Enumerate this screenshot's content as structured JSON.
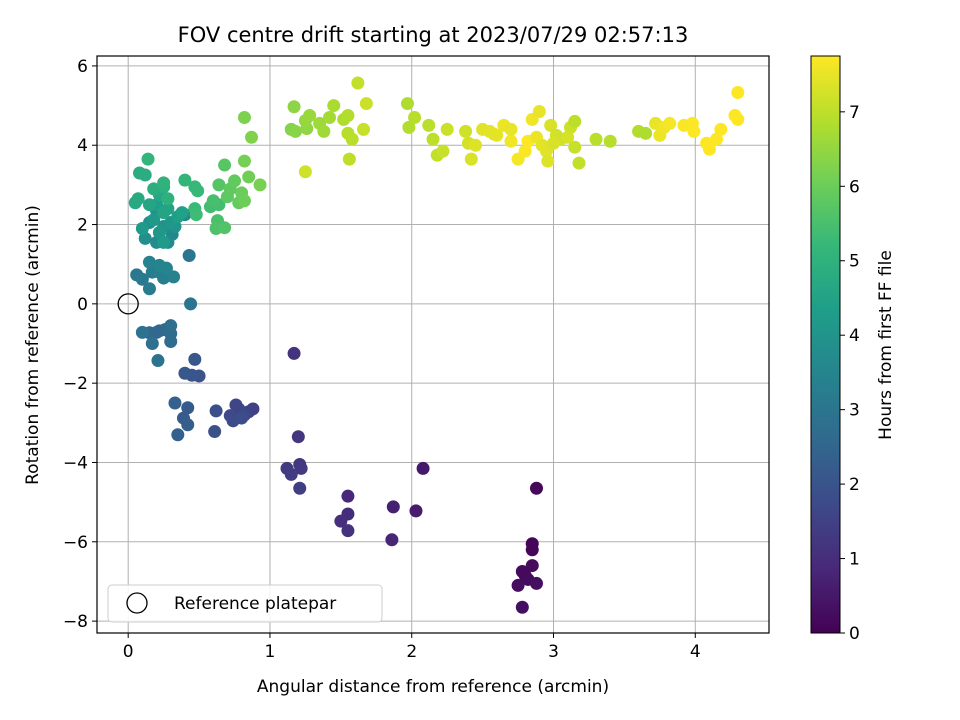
{
  "chart_data": {
    "type": "scatter",
    "title": "FOV centre drift starting at 2023/07/29 02:57:13",
    "xlabel": "Angular distance from reference (arcmin)",
    "ylabel": "Rotation from reference (arcmin)",
    "xlim": [
      -0.22,
      4.52
    ],
    "ylim": [
      -8.3,
      6.25
    ],
    "xticks": [
      0,
      1,
      2,
      3,
      4
    ],
    "yticks": [
      -8,
      -6,
      -4,
      -2,
      0,
      2,
      4,
      6
    ],
    "grid": true,
    "legend": {
      "placement": "lower-left",
      "entries": [
        "Reference platepar"
      ]
    },
    "reference_point": {
      "x": 0.0,
      "y": 0.0
    },
    "colorbar": {
      "label": "Hours from first FF file",
      "range": [
        0,
        7.75
      ],
      "ticks": [
        0,
        1,
        2,
        3,
        4,
        5,
        6,
        7
      ],
      "colormap": "viridis"
    },
    "colormap_stops": [
      "#440154",
      "#482878",
      "#3e4989",
      "#31688e",
      "#26828e",
      "#1f9e89",
      "#35b779",
      "#6ece58",
      "#b5de2b",
      "#fde725"
    ],
    "reference_marker_color": "#000000",
    "points": [
      [
        2.85,
        -6.05,
        0.1
      ],
      [
        2.85,
        -6.2,
        0.12
      ],
      [
        2.88,
        -4.65,
        0.15
      ],
      [
        2.8,
        -6.85,
        0.18
      ],
      [
        2.78,
        -6.75,
        0.2
      ],
      [
        2.85,
        -6.6,
        0.22
      ],
      [
        2.82,
        -6.95,
        0.25
      ],
      [
        2.75,
        -7.1,
        0.28
      ],
      [
        2.88,
        -7.05,
        0.3
      ],
      [
        2.78,
        -7.65,
        0.32
      ],
      [
        2.08,
        -4.15,
        0.5
      ],
      [
        2.03,
        -5.22,
        0.6
      ],
      [
        1.87,
        -5.12,
        0.7
      ],
      [
        1.86,
        -5.95,
        0.8
      ],
      [
        1.55,
        -4.85,
        0.9
      ],
      [
        1.55,
        -5.3,
        1.0
      ],
      [
        1.5,
        -5.48,
        1.05
      ],
      [
        1.55,
        -5.72,
        1.1
      ],
      [
        1.17,
        -1.25,
        1.15
      ],
      [
        1.2,
        -3.35,
        1.2
      ],
      [
        1.21,
        -4.05,
        1.25
      ],
      [
        1.22,
        -4.15,
        1.3
      ],
      [
        1.12,
        -4.15,
        1.35
      ],
      [
        1.15,
        -4.3,
        1.4
      ],
      [
        1.21,
        -4.65,
        1.45
      ],
      [
        0.88,
        -2.65,
        1.5
      ],
      [
        0.85,
        -2.72,
        1.55
      ],
      [
        0.78,
        -2.65,
        1.6
      ],
      [
        0.76,
        -2.55,
        1.65
      ],
      [
        0.82,
        -2.8,
        1.7
      ],
      [
        0.72,
        -2.82,
        1.75
      ],
      [
        0.74,
        -2.95,
        1.8
      ],
      [
        0.8,
        -2.88,
        1.85
      ],
      [
        0.62,
        -2.7,
        1.9
      ],
      [
        0.61,
        -3.22,
        1.95
      ],
      [
        0.5,
        -1.82,
        2.0
      ],
      [
        0.45,
        -1.8,
        2.05
      ],
      [
        0.4,
        -1.75,
        2.1
      ],
      [
        0.47,
        -1.4,
        2.15
      ],
      [
        0.42,
        -2.62,
        2.2
      ],
      [
        0.39,
        -2.88,
        2.25
      ],
      [
        0.42,
        -3.05,
        2.3
      ],
      [
        0.35,
        -3.3,
        2.35
      ],
      [
        0.33,
        -2.5,
        2.4
      ],
      [
        0.22,
        -0.68,
        2.5
      ],
      [
        0.2,
        -0.72,
        2.55
      ],
      [
        0.15,
        -0.73,
        2.6
      ],
      [
        0.26,
        -0.65,
        2.65
      ],
      [
        0.3,
        -0.75,
        2.7
      ],
      [
        0.3,
        -0.95,
        2.75
      ],
      [
        0.3,
        -0.55,
        2.8
      ],
      [
        0.17,
        -1.0,
        2.85
      ],
      [
        0.1,
        -0.72,
        2.9
      ],
      [
        0.21,
        -1.43,
        2.95
      ],
      [
        0.44,
        0.0,
        3.0
      ],
      [
        0.43,
        1.22,
        3.05
      ],
      [
        0.06,
        0.73,
        3.1
      ],
      [
        0.1,
        0.62,
        3.15
      ],
      [
        0.15,
        0.38,
        3.2
      ],
      [
        0.17,
        0.8,
        3.25
      ],
      [
        0.22,
        0.8,
        3.3
      ],
      [
        0.25,
        0.65,
        3.35
      ],
      [
        0.32,
        0.68,
        3.4
      ],
      [
        0.15,
        1.05,
        3.45
      ],
      [
        0.27,
        0.9,
        3.5
      ],
      [
        0.22,
        0.97,
        3.55
      ],
      [
        0.4,
        2.25,
        3.6
      ],
      [
        0.31,
        1.75,
        3.65
      ],
      [
        0.28,
        1.55,
        3.7
      ],
      [
        0.2,
        1.55,
        3.75
      ],
      [
        0.12,
        1.65,
        3.8
      ],
      [
        0.15,
        2.05,
        3.85
      ],
      [
        0.2,
        2.35,
        3.9
      ],
      [
        0.25,
        1.95,
        3.95
      ],
      [
        0.33,
        1.95,
        4.0
      ],
      [
        0.3,
        2.05,
        4.05
      ],
      [
        0.22,
        1.8,
        4.1
      ],
      [
        0.18,
        2.12,
        4.15
      ],
      [
        0.1,
        1.9,
        4.2
      ],
      [
        0.25,
        1.55,
        4.25
      ],
      [
        0.2,
        2.5,
        4.3
      ],
      [
        0.35,
        2.2,
        4.35
      ],
      [
        0.38,
        2.3,
        4.4
      ],
      [
        0.28,
        2.4,
        4.45
      ],
      [
        0.25,
        2.3,
        4.5
      ],
      [
        0.15,
        2.5,
        4.55
      ],
      [
        0.22,
        2.75,
        4.6
      ],
      [
        0.05,
        2.55,
        4.65
      ],
      [
        0.07,
        2.65,
        4.7
      ],
      [
        0.08,
        3.3,
        4.75
      ],
      [
        0.12,
        3.25,
        4.8
      ],
      [
        0.18,
        2.9,
        4.85
      ],
      [
        0.25,
        2.95,
        4.9
      ],
      [
        0.28,
        2.65,
        4.95
      ],
      [
        0.25,
        3.05,
        5.0
      ],
      [
        0.14,
        3.65,
        5.05
      ],
      [
        0.4,
        3.12,
        5.1
      ],
      [
        0.47,
        2.95,
        5.15
      ],
      [
        0.49,
        2.85,
        5.2
      ],
      [
        0.47,
        2.4,
        5.25
      ],
      [
        0.48,
        2.25,
        5.3
      ],
      [
        0.58,
        2.45,
        5.35
      ],
      [
        0.64,
        2.5,
        5.4
      ],
      [
        0.6,
        2.6,
        5.45
      ],
      [
        0.63,
        2.1,
        5.5
      ],
      [
        0.62,
        1.9,
        5.55
      ],
      [
        0.68,
        1.92,
        5.6
      ],
      [
        0.64,
        3.0,
        5.65
      ],
      [
        0.68,
        3.5,
        5.7
      ],
      [
        0.7,
        2.7,
        5.75
      ],
      [
        0.72,
        2.9,
        5.8
      ],
      [
        0.75,
        3.1,
        5.85
      ],
      [
        0.78,
        2.55,
        5.9
      ],
      [
        0.8,
        2.8,
        5.95
      ],
      [
        0.82,
        2.6,
        6.0
      ],
      [
        0.85,
        3.2,
        6.05
      ],
      [
        0.82,
        3.6,
        6.1
      ],
      [
        0.93,
        3.0,
        6.15
      ],
      [
        0.82,
        4.7,
        6.2
      ],
      [
        0.87,
        4.2,
        6.25
      ],
      [
        1.15,
        4.4,
        6.3
      ],
      [
        1.18,
        4.35,
        6.35
      ],
      [
        1.17,
        4.97,
        6.4
      ],
      [
        1.26,
        4.42,
        6.45
      ],
      [
        1.25,
        4.62,
        6.5
      ],
      [
        1.28,
        4.75,
        6.55
      ],
      [
        1.35,
        4.55,
        6.6
      ],
      [
        1.38,
        4.35,
        6.65
      ],
      [
        1.42,
        4.7,
        6.7
      ],
      [
        1.45,
        5.0,
        6.75
      ],
      [
        1.52,
        4.65,
        6.8
      ],
      [
        1.55,
        4.75,
        6.85
      ],
      [
        1.55,
        4.3,
        6.9
      ],
      [
        1.58,
        4.15,
        6.95
      ],
      [
        1.56,
        3.65,
        7.0
      ],
      [
        1.62,
        5.57,
        7.05
      ],
      [
        1.66,
        4.4,
        7.1
      ],
      [
        1.68,
        5.05,
        7.15
      ],
      [
        1.25,
        3.33,
        7.2
      ],
      [
        1.97,
        5.05,
        6.8
      ],
      [
        1.98,
        4.45,
        6.85
      ],
      [
        2.02,
        4.7,
        6.9
      ],
      [
        2.12,
        4.5,
        6.95
      ],
      [
        2.15,
        4.15,
        7.0
      ],
      [
        2.18,
        3.75,
        7.05
      ],
      [
        2.22,
        3.85,
        7.1
      ],
      [
        2.25,
        4.4,
        7.15
      ],
      [
        2.38,
        4.35,
        7.2
      ],
      [
        2.4,
        4.05,
        7.25
      ],
      [
        2.42,
        3.65,
        7.3
      ],
      [
        2.45,
        4.0,
        7.35
      ],
      [
        2.5,
        4.4,
        7.4
      ],
      [
        2.55,
        4.35,
        7.45
      ],
      [
        2.6,
        4.25,
        7.5
      ],
      [
        2.65,
        4.5,
        7.55
      ],
      [
        2.7,
        4.1,
        7.6
      ],
      [
        2.75,
        3.65,
        7.65
      ],
      [
        2.8,
        3.85,
        7.7
      ],
      [
        2.82,
        4.1,
        7.75
      ],
      [
        2.85,
        4.65,
        7.6
      ],
      [
        2.88,
        4.2,
        7.55
      ],
      [
        2.9,
        4.85,
        7.5
      ],
      [
        2.92,
        4.0,
        7.45
      ],
      [
        2.95,
        3.85,
        7.4
      ],
      [
        2.96,
        3.6,
        7.35
      ],
      [
        2.98,
        4.5,
        7.3
      ],
      [
        3.02,
        4.25,
        7.25
      ],
      [
        3.05,
        4.15,
        7.2
      ],
      [
        3.12,
        4.45,
        7.15
      ],
      [
        3.15,
        3.95,
        7.1
      ],
      [
        3.18,
        3.55,
        7.05
      ],
      [
        3.15,
        4.6,
        7.0
      ],
      [
        3.3,
        4.15,
        6.95
      ],
      [
        3.4,
        4.1,
        6.9
      ],
      [
        3.6,
        4.35,
        6.85
      ],
      [
        3.65,
        4.3,
        6.8
      ],
      [
        3.72,
        4.55,
        7.5
      ],
      [
        3.75,
        4.25,
        7.55
      ],
      [
        3.78,
        4.45,
        7.6
      ],
      [
        3.82,
        4.55,
        7.65
      ],
      [
        3.92,
        4.5,
        7.7
      ],
      [
        3.98,
        4.55,
        7.72
      ],
      [
        3.99,
        4.35,
        7.74
      ],
      [
        4.08,
        4.05,
        7.75
      ],
      [
        4.1,
        3.9,
        7.75
      ],
      [
        4.15,
        4.15,
        7.75
      ],
      [
        4.18,
        4.4,
        7.75
      ],
      [
        4.28,
        4.75,
        7.75
      ],
      [
        4.3,
        4.65,
        7.75
      ],
      [
        4.3,
        5.33,
        7.75
      ],
      [
        2.58,
        4.28,
        7.45
      ],
      [
        2.7,
        4.4,
        7.5
      ],
      [
        3.0,
        4.05,
        7.3
      ],
      [
        3.1,
        4.2,
        7.28
      ]
    ]
  }
}
